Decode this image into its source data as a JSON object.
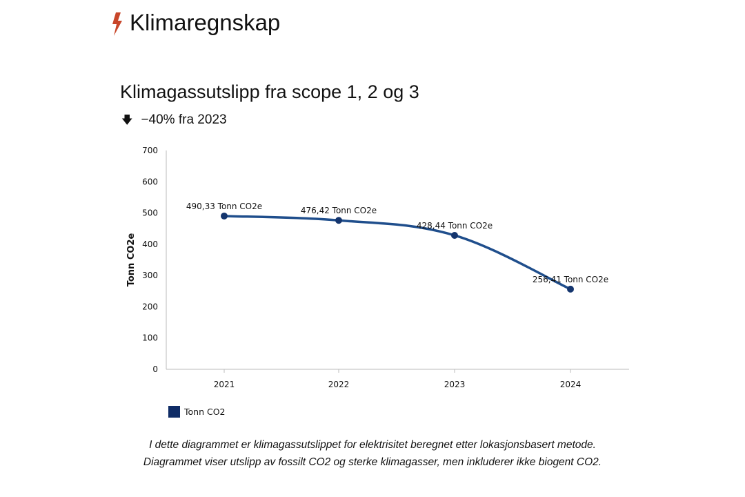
{
  "header": {
    "title": "Klimaregnskap",
    "icon": "lightning-bolt-icon",
    "icon_color": "#c8462a"
  },
  "change": {
    "icon": "arrow-down-icon",
    "text": "−40% fra 2023"
  },
  "chart_data": {
    "type": "line",
    "title": "Klimagassutslipp fra scope 1, 2 og 3",
    "xlabel": "",
    "ylabel": "Tonn CO2e",
    "categories": [
      "2021",
      "2022",
      "2023",
      "2024"
    ],
    "series": [
      {
        "name": "Tonn CO2",
        "values": [
          490.33,
          476.42,
          428.44,
          256.41
        ],
        "color": "#1f4e8c",
        "marker_color": "#14356e"
      }
    ],
    "data_labels": [
      "490,33 Tonn CO2e",
      "476,42 Tonn CO2e",
      "428,44 Tonn CO2e",
      "256,41 Tonn CO2e"
    ],
    "ylim": [
      0,
      700
    ],
    "yticks": [
      "0",
      "100",
      "200",
      "300",
      "400",
      "500",
      "600",
      "700"
    ],
    "grid": false,
    "smooth": true,
    "legend": {
      "placement": "bottom-left",
      "entries": [
        "Tonn CO2"
      ],
      "color": "#0f2c66"
    }
  },
  "notes": [
    "I dette diagrammet er klimagassutslippet for elektrisitet beregnet etter lokasjonsbasert metode.",
    "Diagrammet viser utslipp av fossilt CO2 og sterke klimagasser, men inkluderer ikke biogent CO2."
  ]
}
